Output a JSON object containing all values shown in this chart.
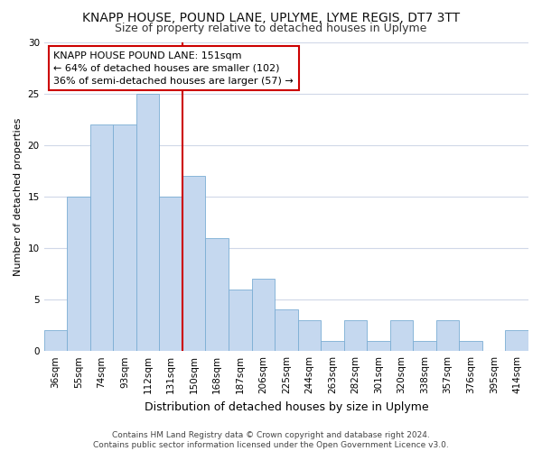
{
  "title": "KNAPP HOUSE, POUND LANE, UPLYME, LYME REGIS, DT7 3TT",
  "subtitle": "Size of property relative to detached houses in Uplyme",
  "xlabel": "Distribution of detached houses by size in Uplyme",
  "ylabel": "Number of detached properties",
  "categories": [
    "36sqm",
    "55sqm",
    "74sqm",
    "93sqm",
    "112sqm",
    "131sqm",
    "150sqm",
    "168sqm",
    "187sqm",
    "206sqm",
    "225sqm",
    "244sqm",
    "263sqm",
    "282sqm",
    "301sqm",
    "320sqm",
    "338sqm",
    "357sqm",
    "376sqm",
    "395sqm",
    "414sqm"
  ],
  "values": [
    2,
    15,
    22,
    22,
    25,
    15,
    17,
    11,
    6,
    7,
    4,
    3,
    1,
    3,
    1,
    3,
    1,
    3,
    1,
    0,
    2
  ],
  "bar_color": "#c5d8ef",
  "bar_edge_color": "#7badd4",
  "vline_x_index": 6,
  "vline_color": "#cc0000",
  "annotation_text": "KNAPP HOUSE POUND LANE: 151sqm\n← 64% of detached houses are smaller (102)\n36% of semi-detached houses are larger (57) →",
  "annotation_box_facecolor": "#ffffff",
  "annotation_box_edgecolor": "#cc0000",
  "ylim": [
    0,
    30
  ],
  "yticks": [
    0,
    5,
    10,
    15,
    20,
    25,
    30
  ],
  "footnote": "Contains HM Land Registry data © Crown copyright and database right 2024.\nContains public sector information licensed under the Open Government Licence v3.0.",
  "bg_color": "#ffffff",
  "plot_bg_color": "#ffffff",
  "grid_color": "#d0d8e8",
  "title_fontsize": 10,
  "subtitle_fontsize": 9,
  "xlabel_fontsize": 9,
  "ylabel_fontsize": 8,
  "tick_fontsize": 7.5,
  "footnote_fontsize": 6.5,
  "annot_fontsize": 8
}
